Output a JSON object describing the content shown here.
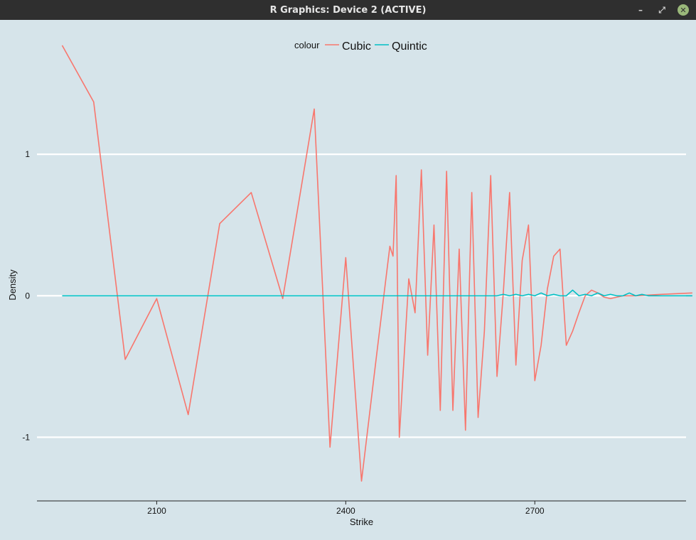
{
  "window": {
    "title": "R Graphics: Device 2 (ACTIVE)",
    "controls": [
      {
        "name": "minimize-icon",
        "glyph": "–"
      },
      {
        "name": "restore-icon",
        "glyph": "⤢"
      },
      {
        "name": "close-icon",
        "glyph": "✕"
      }
    ]
  },
  "chart_data": {
    "type": "line",
    "title": "",
    "xlabel": "Strike",
    "ylabel": "Density",
    "xlim": [
      1910,
      2940
    ],
    "ylim": [
      -1.45,
      1.95
    ],
    "xticks": [
      2100,
      2400,
      2700
    ],
    "yticks": [
      1,
      0,
      -1
    ],
    "ytick_labels": [
      "1",
      "0",
      "-1"
    ],
    "grid": "horizontal major lines only",
    "legend": {
      "title": "colour",
      "placement": "top-center",
      "entries": [
        "Cubic",
        "Quintic"
      ]
    },
    "background": "#d6e4ea",
    "series": [
      {
        "name": "Cubic",
        "color": "#f8766d",
        "x": [
          1950,
          2000,
          2050,
          2100,
          2150,
          2200,
          2250,
          2300,
          2350,
          2375,
          2400,
          2425,
          2450,
          2470,
          2475,
          2480,
          2485,
          2500,
          2510,
          2520,
          2530,
          2540,
          2550,
          2560,
          2570,
          2580,
          2590,
          2600,
          2610,
          2620,
          2630,
          2640,
          2650,
          2660,
          2670,
          2680,
          2690,
          2700,
          2710,
          2720,
          2730,
          2740,
          2750,
          2760,
          2770,
          2780,
          2790,
          2800,
          2810,
          2820,
          2830,
          2840,
          2850,
          2860,
          2900,
          2950
        ],
        "y": [
          1.77,
          1.37,
          -0.45,
          -0.02,
          -0.84,
          0.51,
          0.73,
          -0.02,
          1.32,
          -1.07,
          0.27,
          -1.31,
          -0.38,
          0.35,
          0.28,
          0.85,
          -1.0,
          0.12,
          -0.12,
          0.89,
          -0.42,
          0.5,
          -0.81,
          0.88,
          -0.81,
          0.33,
          -0.95,
          0.73,
          -0.86,
          -0.25,
          0.85,
          -0.57,
          0.02,
          0.73,
          -0.49,
          0.25,
          0.5,
          -0.6,
          -0.35,
          0.05,
          0.28,
          0.33,
          -0.35,
          -0.25,
          -0.12,
          0.0,
          0.04,
          0.02,
          -0.01,
          -0.02,
          -0.01,
          0.0,
          0.0,
          0.0,
          0.01,
          0.02
        ]
      },
      {
        "name": "Quintic",
        "color": "#00bfc4",
        "x": [
          1950,
          2500,
          2600,
          2640,
          2650,
          2660,
          2670,
          2680,
          2690,
          2700,
          2710,
          2720,
          2730,
          2740,
          2750,
          2760,
          2770,
          2780,
          2790,
          2800,
          2810,
          2820,
          2830,
          2840,
          2850,
          2860,
          2870,
          2880,
          2890,
          2950
        ],
        "y": [
          0.0,
          0.0,
          0.0,
          0.0,
          0.01,
          0.0,
          0.01,
          0.0,
          0.01,
          0.0,
          0.02,
          0.0,
          0.01,
          0.0,
          0.0,
          0.04,
          0.0,
          0.01,
          0.0,
          0.02,
          0.0,
          0.01,
          0.0,
          0.0,
          0.02,
          0.0,
          0.01,
          0.0,
          0.0,
          0.0
        ]
      }
    ]
  }
}
